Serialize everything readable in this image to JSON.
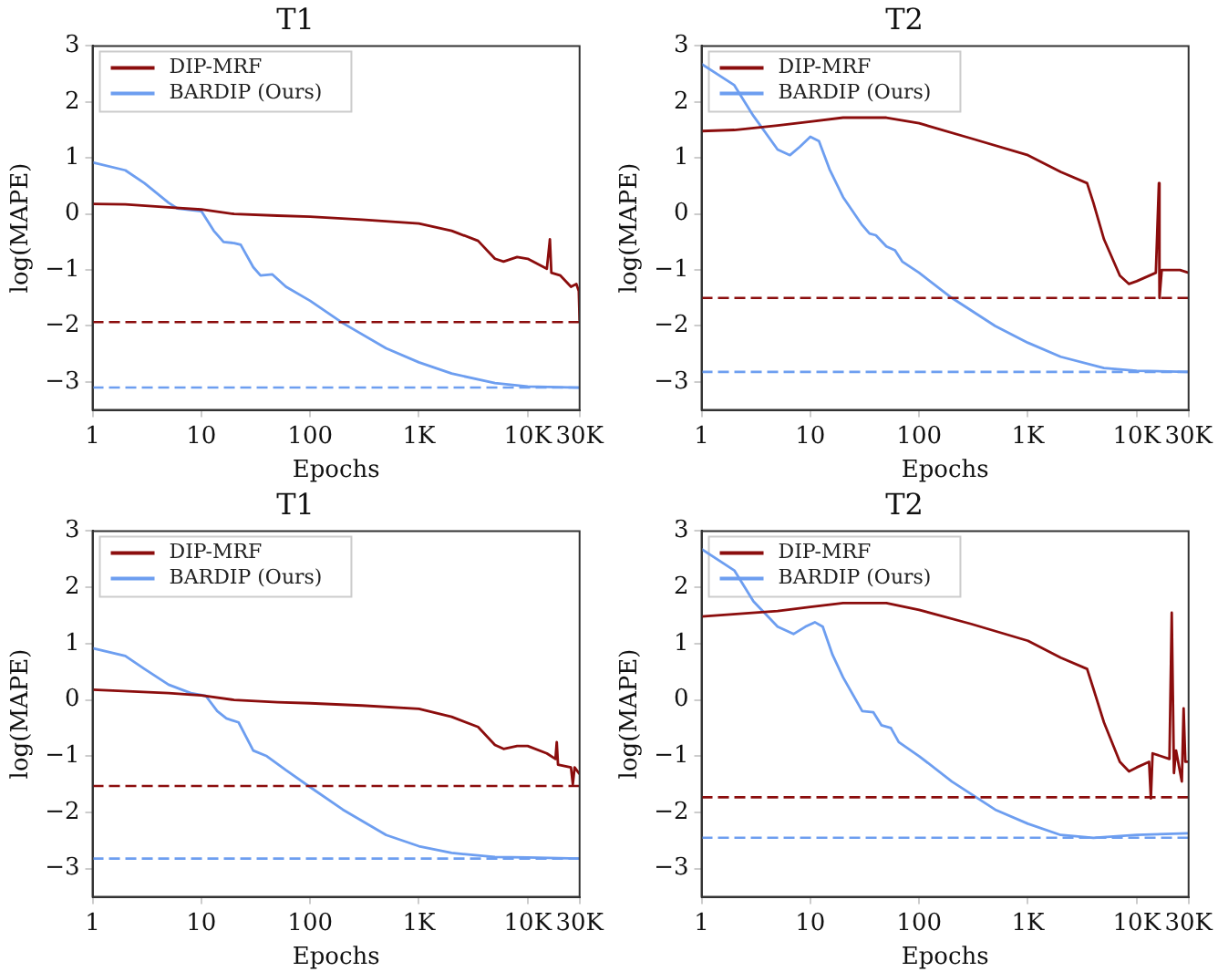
{
  "chart_data": [
    {
      "type": "line",
      "title": "T1",
      "xlabel": "Epochs",
      "ylabel": "log(MAPE)",
      "log": "x",
      "legend": "top left",
      "grid": false,
      "xlim": [
        1,
        30000
      ],
      "xticks": [
        1,
        10,
        100,
        {
          "value": 1000,
          "label": "1K"
        },
        {
          "value": 10000,
          "label": "10K"
        },
        {
          "value": 30000,
          "label": "30K"
        }
      ],
      "ylim": [
        -3.5,
        3
      ],
      "yticks": [
        -3,
        -2,
        -1,
        0,
        1,
        2,
        3
      ],
      "series": [
        {
          "name": "DIP-MRF",
          "color": "#8b0d0d",
          "x": [
            1,
            2,
            5,
            10,
            20,
            50,
            100,
            300,
            1000,
            2000,
            3500,
            5000,
            6000,
            8000,
            10000,
            15000,
            16000,
            16500,
            20000,
            25000,
            28000,
            29500,
            30000
          ],
          "values": [
            0.18,
            0.17,
            0.12,
            0.08,
            0.0,
            -0.03,
            -0.05,
            -0.1,
            -0.17,
            -0.3,
            -0.48,
            -0.8,
            -0.85,
            -0.77,
            -0.8,
            -0.98,
            -0.45,
            -1.05,
            -1.1,
            -1.3,
            -1.25,
            -1.38,
            -1.9
          ]
        },
        {
          "name": "BARDIP (Ours)",
          "color": "#6d9ef0",
          "x": [
            1,
            2,
            3,
            5,
            6,
            8,
            10,
            13,
            16,
            20,
            23,
            30,
            35,
            45,
            60,
            100,
            200,
            500,
            1000,
            2000,
            5000,
            10000,
            30000
          ],
          "values": [
            0.92,
            0.78,
            0.55,
            0.2,
            0.1,
            0.07,
            0.05,
            -0.3,
            -0.5,
            -0.52,
            -0.55,
            -0.95,
            -1.1,
            -1.08,
            -1.3,
            -1.55,
            -1.95,
            -2.4,
            -2.65,
            -2.85,
            -3.02,
            -3.08,
            -3.1
          ]
        }
      ],
      "ref_lines": [
        {
          "axis": "y",
          "value": -1.93,
          "color": "#8b0d0d",
          "line_style": "dashed"
        },
        {
          "axis": "y",
          "value": -3.1,
          "color": "#6d9ef0",
          "line_style": "dashed"
        }
      ]
    },
    {
      "type": "line",
      "title": "T2",
      "xlabel": "Epochs",
      "ylabel": "log(MAPE)",
      "log": "x",
      "legend": "top left",
      "grid": false,
      "xlim": [
        1,
        30000
      ],
      "xticks": [
        1,
        10,
        100,
        {
          "value": 1000,
          "label": "1K"
        },
        {
          "value": 10000,
          "label": "10K"
        },
        {
          "value": 30000,
          "label": "30K"
        }
      ],
      "ylim": [
        -3.5,
        3
      ],
      "yticks": [
        -3,
        -2,
        -1,
        0,
        1,
        2,
        3
      ],
      "series": [
        {
          "name": "DIP-MRF",
          "color": "#8b0d0d",
          "x": [
            1,
            2,
            5,
            10,
            20,
            50,
            100,
            300,
            1000,
            2000,
            3500,
            4000,
            5000,
            7000,
            8500,
            10000,
            15000,
            16000,
            16200,
            17000,
            25000,
            30000
          ],
          "values": [
            1.48,
            1.5,
            1.58,
            1.65,
            1.72,
            1.72,
            1.62,
            1.35,
            1.05,
            0.75,
            0.55,
            0.2,
            -0.45,
            -1.1,
            -1.25,
            -1.2,
            -1.05,
            0.55,
            -1.5,
            -1.0,
            -1.0,
            -1.05
          ]
        },
        {
          "name": "BARDIP (Ours)",
          "color": "#6d9ef0",
          "x": [
            1,
            2,
            3,
            5,
            6.5,
            8,
            10,
            12,
            15,
            20,
            30,
            35,
            40,
            50,
            60,
            70,
            100,
            200,
            500,
            1000,
            2000,
            5000,
            10000,
            30000
          ],
          "values": [
            2.68,
            2.3,
            1.75,
            1.15,
            1.05,
            1.2,
            1.38,
            1.3,
            0.8,
            0.3,
            -0.2,
            -0.35,
            -0.38,
            -0.58,
            -0.65,
            -0.85,
            -1.05,
            -1.5,
            -2.0,
            -2.3,
            -2.55,
            -2.75,
            -2.8,
            -2.82
          ]
        }
      ],
      "ref_lines": [
        {
          "axis": "y",
          "value": -1.5,
          "color": "#8b0d0d",
          "line_style": "dashed"
        },
        {
          "axis": "y",
          "value": -2.82,
          "color": "#6d9ef0",
          "line_style": "dashed"
        }
      ]
    },
    {
      "type": "line",
      "title": "T1",
      "xlabel": "Epochs",
      "ylabel": "log(MAPE)",
      "log": "x",
      "legend": "top left",
      "grid": false,
      "xlim": [
        1,
        30000
      ],
      "xticks": [
        1,
        10,
        100,
        {
          "value": 1000,
          "label": "1K"
        },
        {
          "value": 10000,
          "label": "10K"
        },
        {
          "value": 30000,
          "label": "30K"
        }
      ],
      "ylim": [
        -3.5,
        3
      ],
      "yticks": [
        -3,
        -2,
        -1,
        0,
        1,
        2,
        3
      ],
      "series": [
        {
          "name": "DIP-MRF",
          "color": "#8b0d0d",
          "x": [
            1,
            5,
            10,
            20,
            50,
            100,
            300,
            1000,
            2000,
            3500,
            5000,
            6000,
            8000,
            10000,
            15000,
            18000,
            18500,
            19000,
            25000,
            26000,
            27000,
            30000
          ],
          "values": [
            0.18,
            0.12,
            0.08,
            0.0,
            -0.04,
            -0.06,
            -0.1,
            -0.16,
            -0.3,
            -0.48,
            -0.8,
            -0.87,
            -0.82,
            -0.82,
            -0.95,
            -1.05,
            -0.75,
            -1.15,
            -1.2,
            -1.5,
            -1.2,
            -1.32
          ]
        },
        {
          "name": "BARDIP (Ours)",
          "color": "#6d9ef0",
          "x": [
            1,
            2,
            3,
            5,
            8,
            11,
            14,
            17,
            22,
            30,
            40,
            60,
            100,
            200,
            500,
            1000,
            2000,
            5000,
            10000,
            30000
          ],
          "values": [
            0.92,
            0.78,
            0.55,
            0.27,
            0.12,
            0.07,
            -0.2,
            -0.33,
            -0.4,
            -0.9,
            -1.0,
            -1.25,
            -1.55,
            -1.95,
            -2.4,
            -2.6,
            -2.72,
            -2.79,
            -2.8,
            -2.82
          ]
        }
      ],
      "ref_lines": [
        {
          "axis": "y",
          "value": -1.53,
          "color": "#8b0d0d",
          "line_style": "dashed"
        },
        {
          "axis": "y",
          "value": -2.82,
          "color": "#6d9ef0",
          "line_style": "dashed"
        }
      ]
    },
    {
      "type": "line",
      "title": "T2",
      "xlabel": "Epochs",
      "ylabel": "log(MAPE)",
      "log": "x",
      "legend": "top left",
      "grid": false,
      "xlim": [
        1,
        30000
      ],
      "xticks": [
        1,
        10,
        100,
        {
          "value": 1000,
          "label": "1K"
        },
        {
          "value": 10000,
          "label": "10K"
        },
        {
          "value": 30000,
          "label": "30K"
        }
      ],
      "ylim": [
        -3.5,
        3
      ],
      "yticks": [
        -3,
        -2,
        -1,
        0,
        1,
        2,
        3
      ],
      "series": [
        {
          "name": "DIP-MRF",
          "color": "#8b0d0d",
          "x": [
            1,
            5,
            10,
            20,
            50,
            100,
            300,
            1000,
            2000,
            3500,
            4000,
            5000,
            7000,
            8500,
            10000,
            13000,
            13500,
            14000,
            20000,
            21000,
            22000,
            23000,
            26000,
            27000,
            28000,
            30000
          ],
          "values": [
            1.48,
            1.58,
            1.65,
            1.72,
            1.72,
            1.6,
            1.35,
            1.05,
            0.75,
            0.55,
            0.2,
            -0.4,
            -1.1,
            -1.27,
            -1.2,
            -1.1,
            -1.75,
            -0.95,
            -1.05,
            1.55,
            -1.3,
            -0.9,
            -1.45,
            -0.15,
            -1.1,
            -1.1
          ]
        },
        {
          "name": "BARDIP (Ours)",
          "color": "#6d9ef0",
          "x": [
            1,
            2,
            3,
            5,
            7,
            9,
            11,
            13,
            16,
            20,
            30,
            38,
            45,
            55,
            65,
            100,
            200,
            500,
            1000,
            2000,
            4000,
            10000,
            30000
          ],
          "values": [
            2.68,
            2.3,
            1.75,
            1.3,
            1.17,
            1.3,
            1.38,
            1.3,
            0.8,
            0.4,
            -0.2,
            -0.22,
            -0.45,
            -0.5,
            -0.75,
            -1.0,
            -1.45,
            -1.95,
            -2.2,
            -2.4,
            -2.45,
            -2.4,
            -2.37
          ]
        }
      ],
      "ref_lines": [
        {
          "axis": "y",
          "value": -1.73,
          "color": "#8b0d0d",
          "line_style": "dashed"
        },
        {
          "axis": "y",
          "value": -2.45,
          "color": "#6d9ef0",
          "line_style": "dashed"
        }
      ]
    }
  ]
}
